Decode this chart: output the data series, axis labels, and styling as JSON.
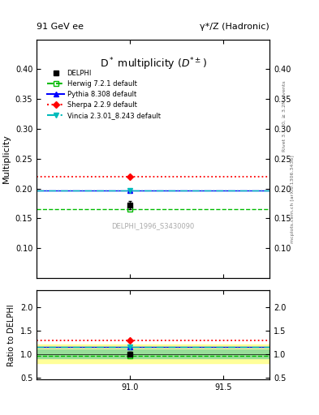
{
  "title_top_left": "91 GeV ee",
  "title_top_right": "γ*/Z (Hadronic)",
  "plot_title": "D· multiplicity (D±)",
  "ylabel_main": "Multiplicity",
  "ylabel_ratio": "Ratio to DELPHI",
  "right_label_top": "Rivet 3.1.10, ≥ 3.2M events",
  "right_label_bottom": "mcplots.cern.ch [arXiv:1306.3436]",
  "watermark": "DELPHI_1996_S3430090",
  "xlim": [
    90.5,
    91.75
  ],
  "xticks": [
    91.0,
    91.5
  ],
  "ylim_main": [
    0.05,
    0.45
  ],
  "yticks_main": [
    0.1,
    0.15,
    0.2,
    0.25,
    0.3,
    0.35,
    0.4
  ],
  "ylim_ratio": [
    0.45,
    2.35
  ],
  "yticks_ratio": [
    0.5,
    1.0,
    1.5,
    2.0
  ],
  "data_x": 91.0,
  "data_y": 0.172,
  "data_yerr": 0.007,
  "data_color": "#000000",
  "herwig_y": 0.165,
  "herwig_color": "#00bb00",
  "pythia_y": 0.197,
  "pythia_color": "#0000ff",
  "sherpa_y": 0.22,
  "sherpa_color": "#ff0000",
  "vincia_y": 0.197,
  "vincia_color": "#00bbbb",
  "band_yellow_lo": 0.8,
  "band_yellow_hi": 1.2,
  "band_green_lo": 0.9,
  "band_green_hi": 1.1,
  "ratio_herwig": 0.96,
  "ratio_pythia": 1.145,
  "ratio_sherpa": 1.28,
  "ratio_vincia": 1.145,
  "ratio_data": 1.0,
  "ratio_data_err": 0.04
}
